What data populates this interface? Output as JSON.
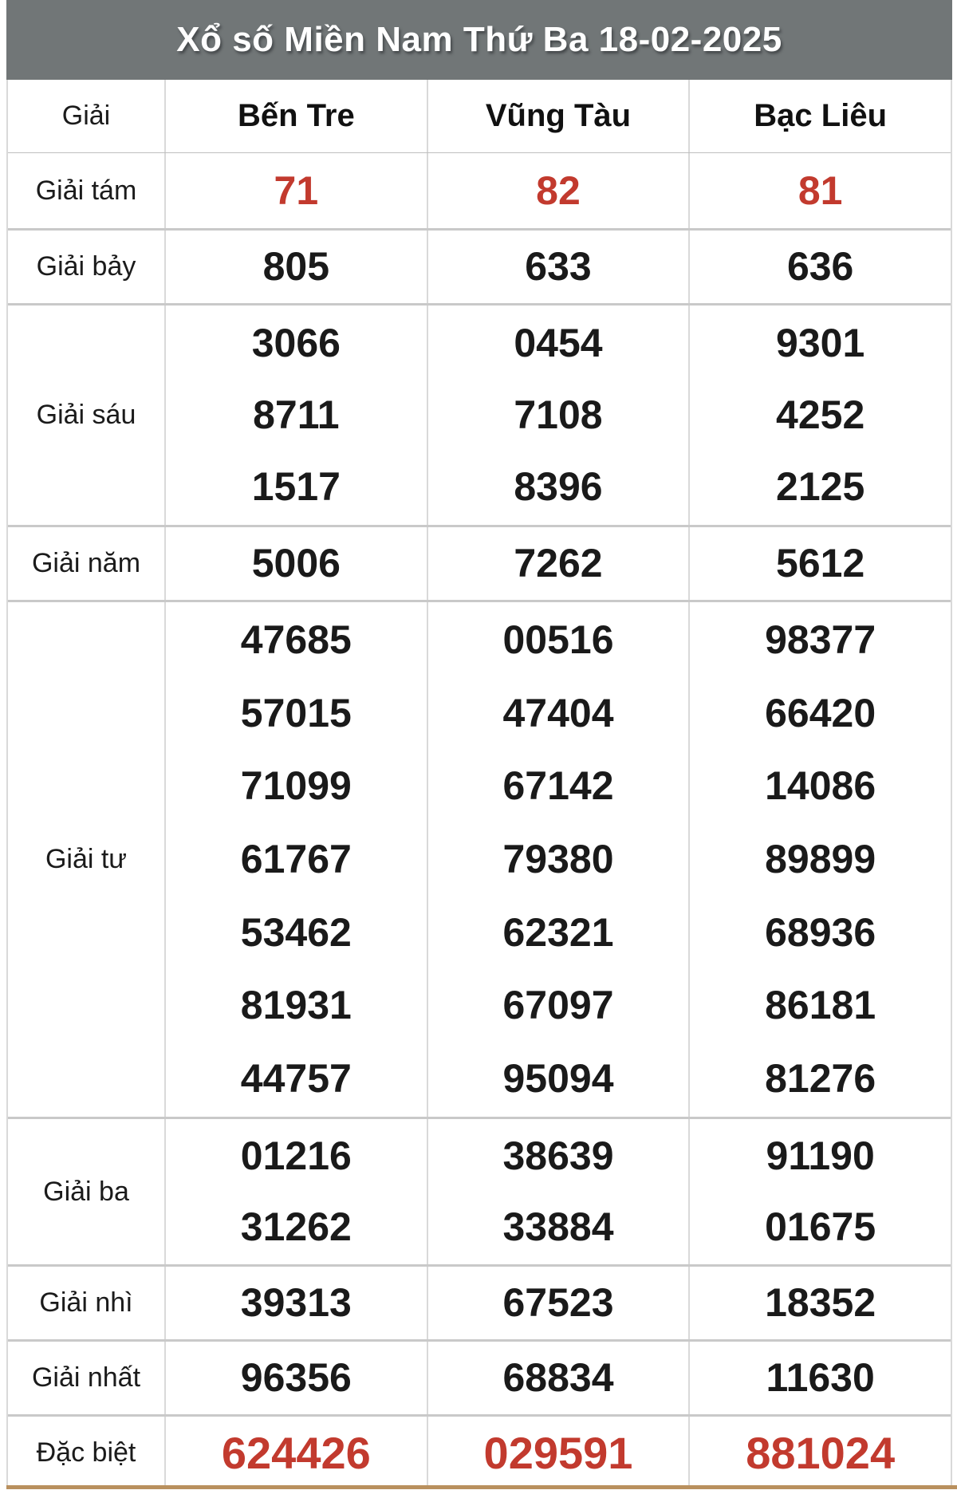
{
  "title": "Xổ số Miền Nam Thứ Ba 18-02-2025",
  "colors": {
    "title_bar_bg": "#717677",
    "title_text": "#ffffff",
    "highlight_red": "#c23a2e",
    "number_black": "#1a1a1a",
    "divider_gray": "#c9c9c9",
    "bottom_bar_tan": "#b9905e"
  },
  "table": {
    "corner_label": "Giải",
    "columns": [
      "Bến Tre",
      "Vũng Tàu",
      "Bạc Liêu"
    ],
    "rows": [
      {
        "label": "Giải tám",
        "highlight": true,
        "special": false,
        "values": [
          [
            "71"
          ],
          [
            "82"
          ],
          [
            "81"
          ]
        ]
      },
      {
        "label": "Giải bảy",
        "highlight": false,
        "special": false,
        "values": [
          [
            "805"
          ],
          [
            "633"
          ],
          [
            "636"
          ]
        ]
      },
      {
        "label": "Giải sáu",
        "highlight": false,
        "special": false,
        "values": [
          [
            "3066",
            "8711",
            "1517"
          ],
          [
            "0454",
            "7108",
            "8396"
          ],
          [
            "9301",
            "4252",
            "2125"
          ]
        ]
      },
      {
        "label": "Giải năm",
        "highlight": false,
        "special": false,
        "values": [
          [
            "5006"
          ],
          [
            "7262"
          ],
          [
            "5612"
          ]
        ]
      },
      {
        "label": "Giải tư",
        "highlight": false,
        "special": false,
        "values": [
          [
            "47685",
            "57015",
            "71099",
            "61767",
            "53462",
            "81931",
            "44757"
          ],
          [
            "00516",
            "47404",
            "67142",
            "79380",
            "62321",
            "67097",
            "95094"
          ],
          [
            "98377",
            "66420",
            "14086",
            "89899",
            "68936",
            "86181",
            "81276"
          ]
        ]
      },
      {
        "label": "Giải ba",
        "highlight": false,
        "special": false,
        "values": [
          [
            "01216",
            "31262"
          ],
          [
            "38639",
            "33884"
          ],
          [
            "91190",
            "01675"
          ]
        ]
      },
      {
        "label": "Giải nhì",
        "highlight": false,
        "special": false,
        "values": [
          [
            "39313"
          ],
          [
            "67523"
          ],
          [
            "18352"
          ]
        ]
      },
      {
        "label": "Giải nhất",
        "highlight": false,
        "special": false,
        "values": [
          [
            "96356"
          ],
          [
            "68834"
          ],
          [
            "11630"
          ]
        ]
      },
      {
        "label": "Đặc biệt",
        "highlight": true,
        "special": true,
        "values": [
          [
            "624426"
          ],
          [
            "029591"
          ],
          [
            "881024"
          ]
        ]
      }
    ]
  }
}
